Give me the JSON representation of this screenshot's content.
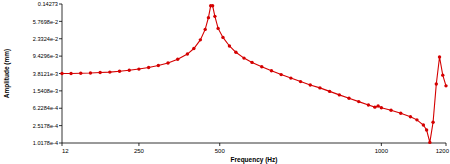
{
  "chart_data": {
    "type": "line",
    "x_label": "Frequency (Hz)",
    "y_label": "Amplitude (mm)",
    "x": [
      12,
      40,
      70,
      100,
      130,
      160,
      190,
      220,
      250,
      280,
      310,
      340,
      370,
      400,
      420,
      440,
      455,
      465,
      472,
      478,
      485,
      495,
      510,
      530,
      550,
      575,
      600,
      630,
      660,
      690,
      720,
      750,
      780,
      810,
      840,
      870,
      900,
      930,
      960,
      980,
      990,
      1000,
      1030,
      1060,
      1090,
      1110,
      1130,
      1140,
      1150,
      1160,
      1170,
      1180,
      1190,
      1200
    ],
    "series": [
      {
        "name": "Amplitude",
        "color": "#d40000",
        "marker": "circle",
        "line_style": "solid",
        "values": [
          0.0038,
          0.0038,
          0.00385,
          0.0039,
          0.004,
          0.0041,
          0.0043,
          0.0045,
          0.0048,
          0.0052,
          0.0058,
          0.0066,
          0.008,
          0.0105,
          0.014,
          0.022,
          0.038,
          0.07,
          0.13,
          0.13,
          0.075,
          0.04,
          0.025,
          0.016,
          0.0115,
          0.0085,
          0.0068,
          0.0054,
          0.0044,
          0.0036,
          0.003,
          0.0025,
          0.0021,
          0.0018,
          0.0015,
          0.00125,
          0.00105,
          0.00088,
          0.00074,
          0.00066,
          0.0007,
          0.00064,
          0.00056,
          0.00048,
          0.0004,
          0.00034,
          0.00026,
          0.0002,
          0.000105,
          0.0003,
          0.0022,
          0.009,
          0.0035,
          0.002
        ]
      }
    ],
    "xlim": [
      12,
      1200
    ],
    "xticks": [
      12,
      250,
      500,
      1000,
      1200
    ],
    "ylim": [
      0.00010178,
      0.14273
    ],
    "log": "y",
    "yticks": [
      {
        "value": 0.00010178,
        "label": "1.0178e-4"
      },
      {
        "value": 0.00025178,
        "label": "2.5178e-4"
      },
      {
        "value": 0.00062284,
        "label": "6.2284e-4"
      },
      {
        "value": 0.0015408,
        "label": "1.5408e-3"
      },
      {
        "value": 0.0038121,
        "label": "3.8121e-3"
      },
      {
        "value": 0.0094296,
        "label": "9.4296e-3"
      },
      {
        "value": 0.023324,
        "label": "2.3324e-2"
      },
      {
        "value": 0.057698,
        "label": "5.7698e-2"
      },
      {
        "value": 0.14273,
        "label": "0.14273"
      }
    ],
    "grid": false
  }
}
